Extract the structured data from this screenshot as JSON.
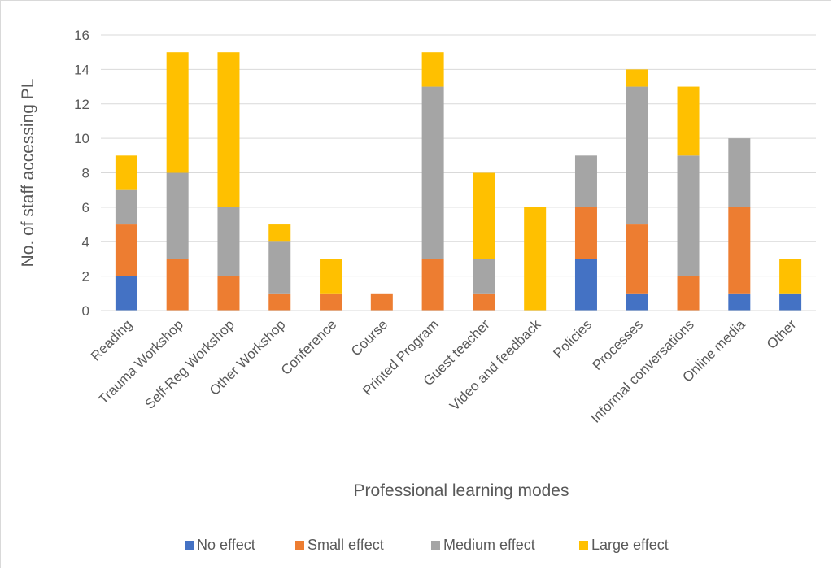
{
  "chart_data": {
    "type": "bar",
    "stacked": true,
    "categories": [
      "Reading",
      "Trauma Workshop",
      "Self-Reg Workshop",
      "Other Workshop",
      "Conference",
      "Course",
      "Printed Program",
      "Guest teacher",
      "Video and feedback",
      "Policies",
      "Processes",
      "Informal conversations",
      "Online media",
      "Other"
    ],
    "series": [
      {
        "name": "No effect",
        "color": "#4472c4",
        "values": [
          2,
          0,
          0,
          0,
          0,
          0,
          0,
          0,
          0,
          3,
          1,
          0,
          1,
          1
        ]
      },
      {
        "name": "Small effect",
        "color": "#ed7d31",
        "values": [
          3,
          3,
          2,
          1,
          1,
          1,
          3,
          1,
          0,
          3,
          4,
          2,
          5,
          0
        ]
      },
      {
        "name": "Medium effect",
        "color": "#a5a5a5",
        "values": [
          2,
          5,
          4,
          3,
          0,
          0,
          10,
          2,
          0,
          3,
          8,
          7,
          4,
          0
        ]
      },
      {
        "name": "Large effect",
        "color": "#ffc000",
        "values": [
          2,
          7,
          9,
          1,
          2,
          0,
          2,
          5,
          6,
          0,
          1,
          4,
          0,
          2
        ]
      }
    ],
    "xlabel": "Professional learning modes",
    "ylabel": "No. of staff accessing PL",
    "ylim": [
      0,
      16
    ],
    "yticks": [
      0,
      2,
      4,
      6,
      8,
      10,
      12,
      14,
      16
    ],
    "grid": true,
    "gridColor": "#d9d9d9",
    "legend": "bottom"
  }
}
